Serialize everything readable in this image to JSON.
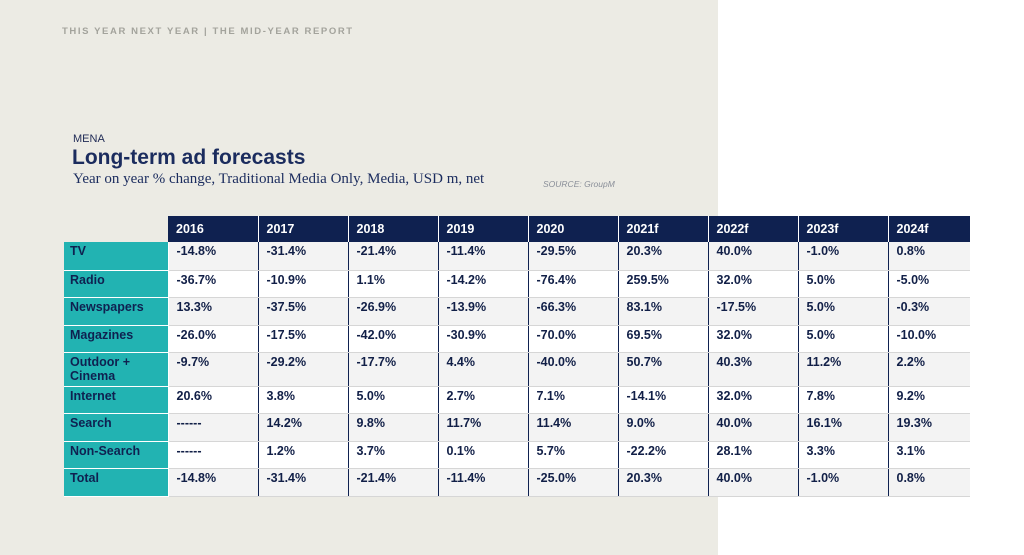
{
  "report_header": "THIS YEAR NEXT YEAR | THE MID-YEAR REPORT",
  "region": "MENA",
  "title": "Long-term ad forecasts",
  "subtitle": "Year on year % change, Traditional Media Only, Media, USD m, net",
  "source": "SOURCE: GroupM",
  "colors": {
    "header_bg": "#0f2150",
    "label_bg": "#22b3b2",
    "panel_bg": "#ecebe4",
    "title": "#1b2c5e"
  },
  "table": {
    "columns": [
      "2016",
      "2017",
      "2018",
      "2019",
      "2020",
      "2021f",
      "2022f",
      "2023f",
      "2024f"
    ],
    "rows": [
      {
        "label": "TV",
        "values": [
          "-14.8%",
          "-31.4%",
          "-21.4%",
          "-11.4%",
          "-29.5%",
          "20.3%",
          "40.0%",
          "-1.0%",
          "0.8%"
        ]
      },
      {
        "label": "Radio",
        "values": [
          "-36.7%",
          "-10.9%",
          "1.1%",
          "-14.2%",
          "-76.4%",
          "259.5%",
          "32.0%",
          "5.0%",
          "-5.0%"
        ]
      },
      {
        "label": "Newspapers",
        "values": [
          "13.3%",
          "-37.5%",
          "-26.9%",
          "-13.9%",
          "-66.3%",
          "83.1%",
          "-17.5%",
          "5.0%",
          "-0.3%"
        ]
      },
      {
        "label": "Magazines",
        "values": [
          "-26.0%",
          "-17.5%",
          "-42.0%",
          "-30.9%",
          "-70.0%",
          "69.5%",
          "32.0%",
          "5.0%",
          "-10.0%"
        ]
      },
      {
        "label": "Outdoor + Cinema",
        "values": [
          "-9.7%",
          "-29.2%",
          "-17.7%",
          "4.4%",
          "-40.0%",
          "50.7%",
          "40.3%",
          "11.2%",
          "2.2%"
        ]
      },
      {
        "label": "Internet",
        "values": [
          "20.6%",
          "3.8%",
          "5.0%",
          "2.7%",
          "7.1%",
          "-14.1%",
          "32.0%",
          "7.8%",
          "9.2%"
        ]
      },
      {
        "label": "Search",
        "values": [
          "------",
          "14.2%",
          "9.8%",
          "11.7%",
          "11.4%",
          "9.0%",
          "40.0%",
          "16.1%",
          "19.3%"
        ]
      },
      {
        "label": "Non-Search",
        "values": [
          "------",
          "1.2%",
          "3.7%",
          "0.1%",
          "5.7%",
          "-22.2%",
          "28.1%",
          "3.3%",
          "3.1%"
        ]
      },
      {
        "label": "Total",
        "values": [
          "-14.8%",
          "-31.4%",
          "-21.4%",
          "-11.4%",
          "-25.0%",
          "20.3%",
          "40.0%",
          "-1.0%",
          "0.8%"
        ]
      }
    ]
  }
}
